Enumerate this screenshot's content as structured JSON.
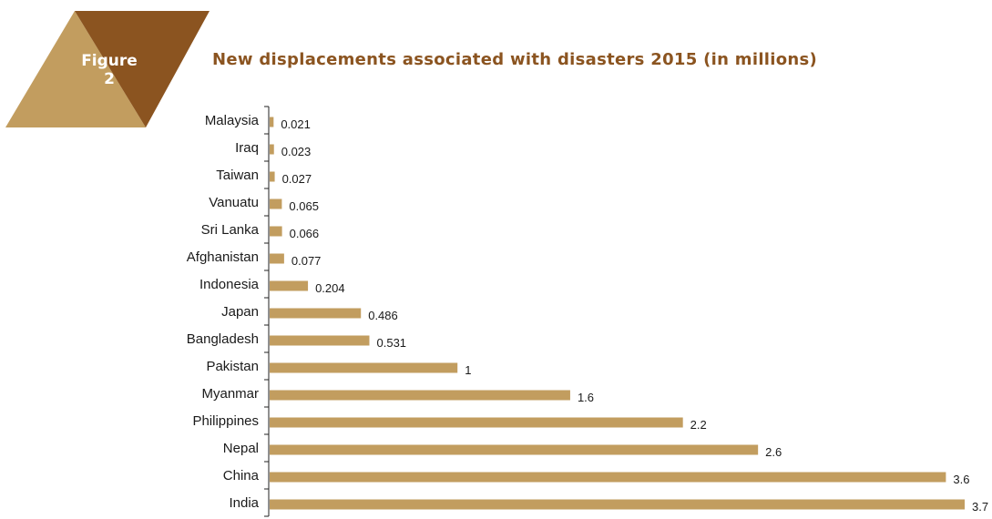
{
  "figure": {
    "label": "Figure",
    "number": "2"
  },
  "colors": {
    "bar": "#c29d5f",
    "badge_light": "#c29d5f",
    "badge_dark": "#8b5420",
    "title": "#8b5420",
    "axis": "#222222"
  },
  "chart_data": {
    "type": "bar",
    "orientation": "horizontal",
    "title": "New displacements associated with disasters 2015 (in millions)",
    "categories": [
      "Malaysia",
      "Iraq",
      "Taiwan",
      "Vanuatu",
      "Sri Lanka",
      "Afghanistan",
      "Indonesia",
      "Japan",
      "Bangladesh",
      "Pakistan",
      "Myanmar",
      "Philippines",
      "Nepal",
      "China",
      "India"
    ],
    "values": [
      0.021,
      0.023,
      0.027,
      0.065,
      0.066,
      0.077,
      0.204,
      0.486,
      0.531,
      1,
      1.6,
      2.2,
      2.6,
      3.6,
      3.7
    ],
    "value_labels": [
      "0.021",
      "0.023",
      "0.027",
      "0.065",
      "0.066",
      "0.077",
      "0.204",
      "0.486",
      "0.531",
      "1",
      "1.6",
      "2.2",
      "2.6",
      "3.6",
      "3.7"
    ],
    "xlim": [
      0,
      3.7
    ],
    "grid": false,
    "legend": "none"
  }
}
